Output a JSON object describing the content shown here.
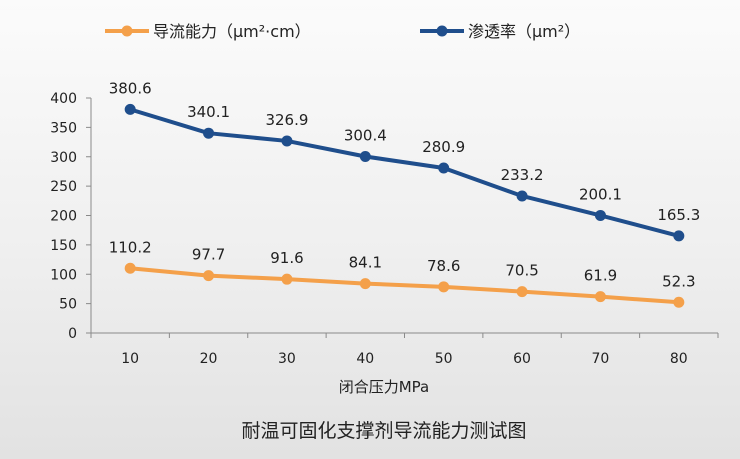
{
  "chart_data": {
    "type": "line",
    "title": "耐温可固化支撑剂导流能力测试图",
    "xlabel": "闭合压力MPa",
    "ylabel": "",
    "categories": [
      "10",
      "20",
      "30",
      "40",
      "50",
      "60",
      "70",
      "80"
    ],
    "ylim": [
      0,
      400
    ],
    "yticks": [
      "0",
      "50",
      "100",
      "150",
      "200",
      "250",
      "300",
      "350",
      "400"
    ],
    "grid": false,
    "legend_position": "top",
    "series": [
      {
        "name": "导流能力（μm²·cm）",
        "color": "#F4A04A",
        "values": [
          110.2,
          97.7,
          91.6,
          84.1,
          78.6,
          70.5,
          61.9,
          52.3
        ],
        "labels": [
          "110.2",
          "97.7",
          "91.6",
          "84.1",
          "78.6",
          "70.5",
          "61.9",
          "52.3"
        ]
      },
      {
        "name": "渗透率（μm²）",
        "color": "#1F4E8C",
        "values": [
          380.6,
          340.1,
          326.9,
          300.4,
          280.9,
          233.2,
          200.1,
          165.3
        ],
        "labels": [
          "380.6",
          "340.1",
          "326.9",
          "300.4",
          "280.9",
          "233.2",
          "200.1",
          "165.3"
        ]
      }
    ]
  }
}
